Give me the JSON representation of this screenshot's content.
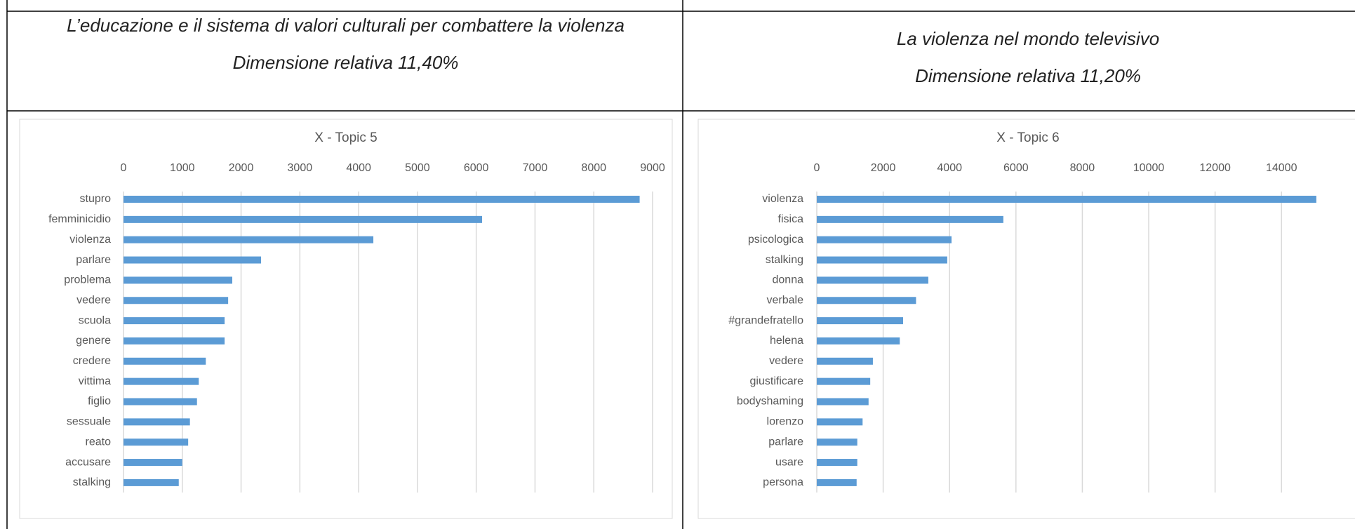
{
  "table": {
    "headers": [
      {
        "title": "L’educazione e il sistema di valori culturali per combattere la violenza",
        "subtitle": "Dimensione relativa 11,40%"
      },
      {
        "title": "La violenza nel mondo televisivo",
        "subtitle": "Dimensione relativa 11,20%"
      }
    ]
  },
  "chart_data": [
    {
      "type": "barh",
      "title": "X - Topic 5",
      "color": "#5b9bd5",
      "grid": true,
      "categories": [
        "stupro",
        "femminicidio",
        "violenza",
        "parlare",
        "problema",
        "vedere",
        "scuola",
        "genere",
        "credere",
        "vittima",
        "figlio",
        "sessuale",
        "reato",
        "accusare",
        "stalking"
      ],
      "values": [
        8780,
        6100,
        4250,
        2340,
        1850,
        1780,
        1720,
        1720,
        1400,
        1280,
        1250,
        1130,
        1100,
        1000,
        940
      ],
      "xlim": [
        0,
        9000
      ],
      "xticks": [
        0,
        1000,
        2000,
        3000,
        4000,
        5000,
        6000,
        7000,
        8000,
        9000
      ]
    },
    {
      "type": "barh",
      "title": "X - Topic 6",
      "color": "#5b9bd5",
      "grid": true,
      "categories": [
        "violenza",
        "fisica",
        "psicologica",
        "stalking",
        "donna",
        "verbale",
        "#grandefratello",
        "helena",
        "vedere",
        "giustificare",
        "bodyshaming",
        "lorenzo",
        "parlare",
        "usare",
        "persona"
      ],
      "values": [
        15050,
        5620,
        4060,
        3930,
        3360,
        2990,
        2600,
        2500,
        1690,
        1610,
        1560,
        1380,
        1220,
        1220,
        1200
      ],
      "xlim": [
        0,
        15200
      ],
      "xticks": [
        0,
        2000,
        4000,
        6000,
        8000,
        10000,
        12000,
        14000
      ]
    }
  ]
}
